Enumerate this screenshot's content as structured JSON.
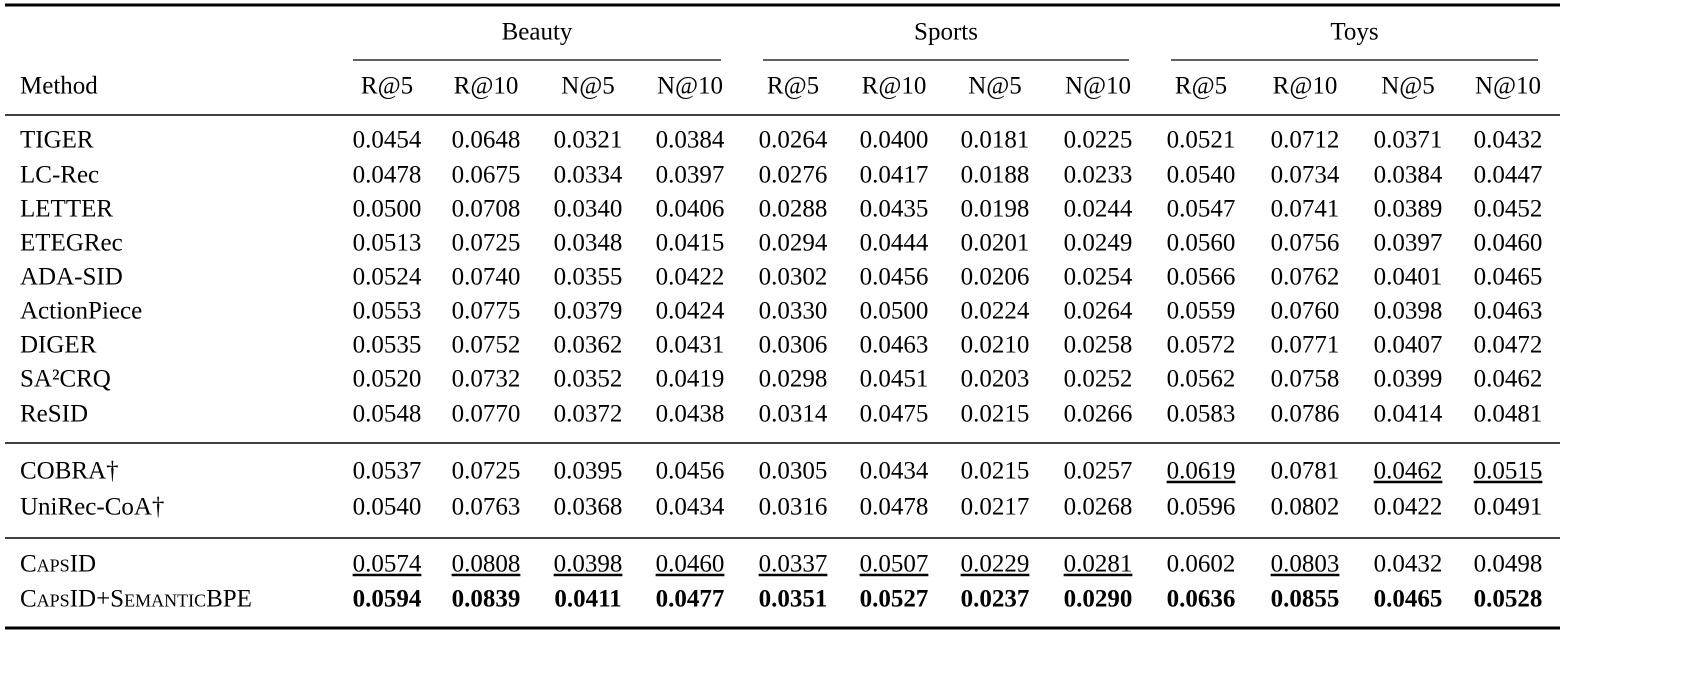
{
  "header": {
    "method": "Method",
    "groups": [
      {
        "name": "Beauty",
        "metrics": [
          "R@5",
          "R@10",
          "N@5",
          "N@10"
        ]
      },
      {
        "name": "Sports",
        "metrics": [
          "R@5",
          "R@10",
          "N@5",
          "N@10"
        ]
      },
      {
        "name": "Toys",
        "metrics": [
          "R@5",
          "R@10",
          "N@5",
          "N@10"
        ]
      }
    ]
  },
  "sections": [
    {
      "rows": [
        {
          "method": "TIGER",
          "cells": [
            "0.0454",
            "0.0648",
            "0.0321",
            "0.0384",
            "0.0264",
            "0.0400",
            "0.0181",
            "0.0225",
            "0.0521",
            "0.0712",
            "0.0371",
            "0.0432"
          ]
        },
        {
          "method": "LC-Rec",
          "cells": [
            "0.0478",
            "0.0675",
            "0.0334",
            "0.0397",
            "0.0276",
            "0.0417",
            "0.0188",
            "0.0233",
            "0.0540",
            "0.0734",
            "0.0384",
            "0.0447"
          ]
        },
        {
          "method": "LETTER",
          "cells": [
            "0.0500",
            "0.0708",
            "0.0340",
            "0.0406",
            "0.0288",
            "0.0435",
            "0.0198",
            "0.0244",
            "0.0547",
            "0.0741",
            "0.0389",
            "0.0452"
          ]
        },
        {
          "method": "ETEGRec",
          "cells": [
            "0.0513",
            "0.0725",
            "0.0348",
            "0.0415",
            "0.0294",
            "0.0444",
            "0.0201",
            "0.0249",
            "0.0560",
            "0.0756",
            "0.0397",
            "0.0460"
          ]
        },
        {
          "method": "ADA-SID",
          "cells": [
            "0.0524",
            "0.0740",
            "0.0355",
            "0.0422",
            "0.0302",
            "0.0456",
            "0.0206",
            "0.0254",
            "0.0566",
            "0.0762",
            "0.0401",
            "0.0465"
          ]
        },
        {
          "method": "ActionPiece",
          "cells": [
            "0.0553",
            "0.0775",
            "0.0379",
            "0.0424",
            "0.0330",
            "0.0500",
            "0.0224",
            "0.0264",
            "0.0559",
            "0.0760",
            "0.0398",
            "0.0463"
          ]
        },
        {
          "method": "DIGER",
          "cells": [
            "0.0535",
            "0.0752",
            "0.0362",
            "0.0431",
            "0.0306",
            "0.0463",
            "0.0210",
            "0.0258",
            "0.0572",
            "0.0771",
            "0.0407",
            "0.0472"
          ]
        },
        {
          "method": "SA²CRQ",
          "cells": [
            "0.0520",
            "0.0732",
            "0.0352",
            "0.0419",
            "0.0298",
            "0.0451",
            "0.0203",
            "0.0252",
            "0.0562",
            "0.0758",
            "0.0399",
            "0.0462"
          ]
        },
        {
          "method": "ReSID",
          "cells": [
            "0.0548",
            "0.0770",
            "0.0372",
            "0.0438",
            "0.0314",
            "0.0475",
            "0.0215",
            "0.0266",
            "0.0583",
            "0.0786",
            "0.0414",
            "0.0481"
          ]
        }
      ]
    },
    {
      "rows": [
        {
          "method": "COBRA†",
          "cells": [
            "0.0537",
            "0.0725",
            "0.0395",
            "0.0456",
            "0.0305",
            "0.0434",
            "0.0215",
            "0.0257",
            {
              "text": "0.0619",
              "style": "underline"
            },
            "0.0781",
            {
              "text": "0.0462",
              "style": "underline"
            },
            {
              "text": "0.0515",
              "style": "underline"
            }
          ]
        },
        {
          "method": "UniRec-CoA†",
          "cells": [
            "0.0540",
            "0.0763",
            "0.0368",
            "0.0434",
            "0.0316",
            "0.0478",
            "0.0217",
            "0.0268",
            "0.0596",
            "0.0802",
            "0.0422",
            "0.0491"
          ]
        }
      ]
    },
    {
      "rows": [
        {
          "method": "CapsID",
          "method_style": "small-caps",
          "cells": [
            {
              "text": "0.0574",
              "style": "underline"
            },
            {
              "text": "0.0808",
              "style": "underline"
            },
            {
              "text": "0.0398",
              "style": "underline"
            },
            {
              "text": "0.0460",
              "style": "underline"
            },
            {
              "text": "0.0337",
              "style": "underline"
            },
            {
              "text": "0.0507",
              "style": "underline"
            },
            {
              "text": "0.0229",
              "style": "underline"
            },
            {
              "text": "0.0281",
              "style": "underline"
            },
            "0.0602",
            {
              "text": "0.0803",
              "style": "underline"
            },
            "0.0432",
            "0.0498"
          ]
        },
        {
          "method": "CapsID+SemanticBPE",
          "method_style": "small-caps",
          "style": "bold",
          "cells": [
            "0.0594",
            "0.0839",
            "0.0411",
            "0.0477",
            "0.0351",
            "0.0527",
            "0.0237",
            "0.0290",
            "0.0636",
            "0.0855",
            "0.0465",
            "0.0528"
          ]
        }
      ]
    }
  ]
}
